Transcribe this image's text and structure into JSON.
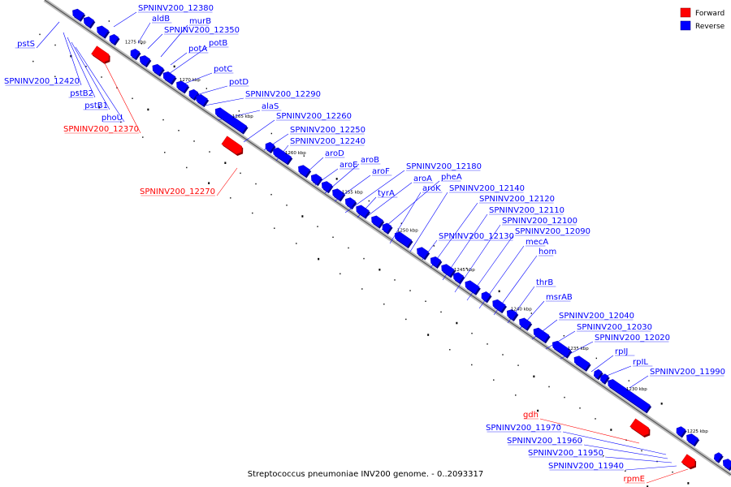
{
  "caption": "Streptococcus pneumoniae INV200 genome. - 0..2093317",
  "colors": {
    "forward": "#ff0000",
    "reverse": "#0000ff",
    "backbone": "#888888"
  },
  "legend": [
    {
      "label": "Forward",
      "color": "#ff0000"
    },
    {
      "label": "Reverse",
      "color": "#0000ff"
    }
  ],
  "ticks": [
    "1275 kbp",
    "1270 kbp",
    "1265 kbp",
    "1260 kbp",
    "1255 kbp",
    "1250 kbp",
    "1245 kbp",
    "1240 kbp",
    "1235 kbp",
    "1230 kbp",
    "1225 kbp"
  ],
  "labels": [
    {
      "text": "SPNINV200_12380",
      "strand": "reverse"
    },
    {
      "text": "aldB",
      "strand": "reverse"
    },
    {
      "text": "murB",
      "strand": "reverse"
    },
    {
      "text": "SPNINV200_12350",
      "strand": "reverse"
    },
    {
      "text": "potA",
      "strand": "reverse"
    },
    {
      "text": "potB",
      "strand": "reverse"
    },
    {
      "text": "potC",
      "strand": "reverse"
    },
    {
      "text": "potD",
      "strand": "reverse"
    },
    {
      "text": "SPNINV200_12290",
      "strand": "reverse"
    },
    {
      "text": "alaS",
      "strand": "reverse"
    },
    {
      "text": "SPNINV200_12260",
      "strand": "reverse"
    },
    {
      "text": "SPNINV200_12250",
      "strand": "reverse"
    },
    {
      "text": "SPNINV200_12240",
      "strand": "reverse"
    },
    {
      "text": "aroD",
      "strand": "reverse"
    },
    {
      "text": "aroE",
      "strand": "reverse"
    },
    {
      "text": "aroB",
      "strand": "reverse"
    },
    {
      "text": "aroF",
      "strand": "reverse"
    },
    {
      "text": "SPNINV200_12180",
      "strand": "reverse"
    },
    {
      "text": "aroA",
      "strand": "reverse"
    },
    {
      "text": "pheA",
      "strand": "reverse"
    },
    {
      "text": "tyrA",
      "strand": "reverse"
    },
    {
      "text": "aroK",
      "strand": "reverse"
    },
    {
      "text": "SPNINV200_12140",
      "strand": "reverse"
    },
    {
      "text": "SPNINV200_12120",
      "strand": "reverse"
    },
    {
      "text": "SPNINV200_12110",
      "strand": "reverse"
    },
    {
      "text": "SPNINV200_12100",
      "strand": "reverse"
    },
    {
      "text": "SPNINV200_12090",
      "strand": "reverse"
    },
    {
      "text": "SPNINV200_12130",
      "strand": "reverse"
    },
    {
      "text": "mecA",
      "strand": "reverse"
    },
    {
      "text": "hom",
      "strand": "reverse"
    },
    {
      "text": "thrB",
      "strand": "reverse"
    },
    {
      "text": "msrAB",
      "strand": "reverse"
    },
    {
      "text": "SPNINV200_12040",
      "strand": "reverse"
    },
    {
      "text": "SPNINV200_12030",
      "strand": "reverse"
    },
    {
      "text": "SPNINV200_12020",
      "strand": "reverse"
    },
    {
      "text": "rpIJ",
      "strand": "reverse"
    },
    {
      "text": "rpIL",
      "strand": "reverse"
    },
    {
      "text": "SPNINV200_11990",
      "strand": "reverse"
    },
    {
      "text": "pstS",
      "strand": "reverse"
    },
    {
      "text": "SPNINV200_12420",
      "strand": "reverse"
    },
    {
      "text": "pstB2",
      "strand": "reverse"
    },
    {
      "text": "pstB1",
      "strand": "reverse"
    },
    {
      "text": "phoU",
      "strand": "reverse"
    },
    {
      "text": "SPNINV200_12370",
      "strand": "forward"
    },
    {
      "text": "SPNINV200_12270",
      "strand": "forward"
    },
    {
      "text": "gdh",
      "strand": "forward"
    },
    {
      "text": "SPNINV200_11970",
      "strand": "reverse"
    },
    {
      "text": "SPNINV200_11960",
      "strand": "reverse"
    },
    {
      "text": "SPNINV200_11950",
      "strand": "reverse"
    },
    {
      "text": "SPNINV200_11940",
      "strand": "reverse"
    },
    {
      "text": "rpmE",
      "strand": "forward"
    }
  ]
}
